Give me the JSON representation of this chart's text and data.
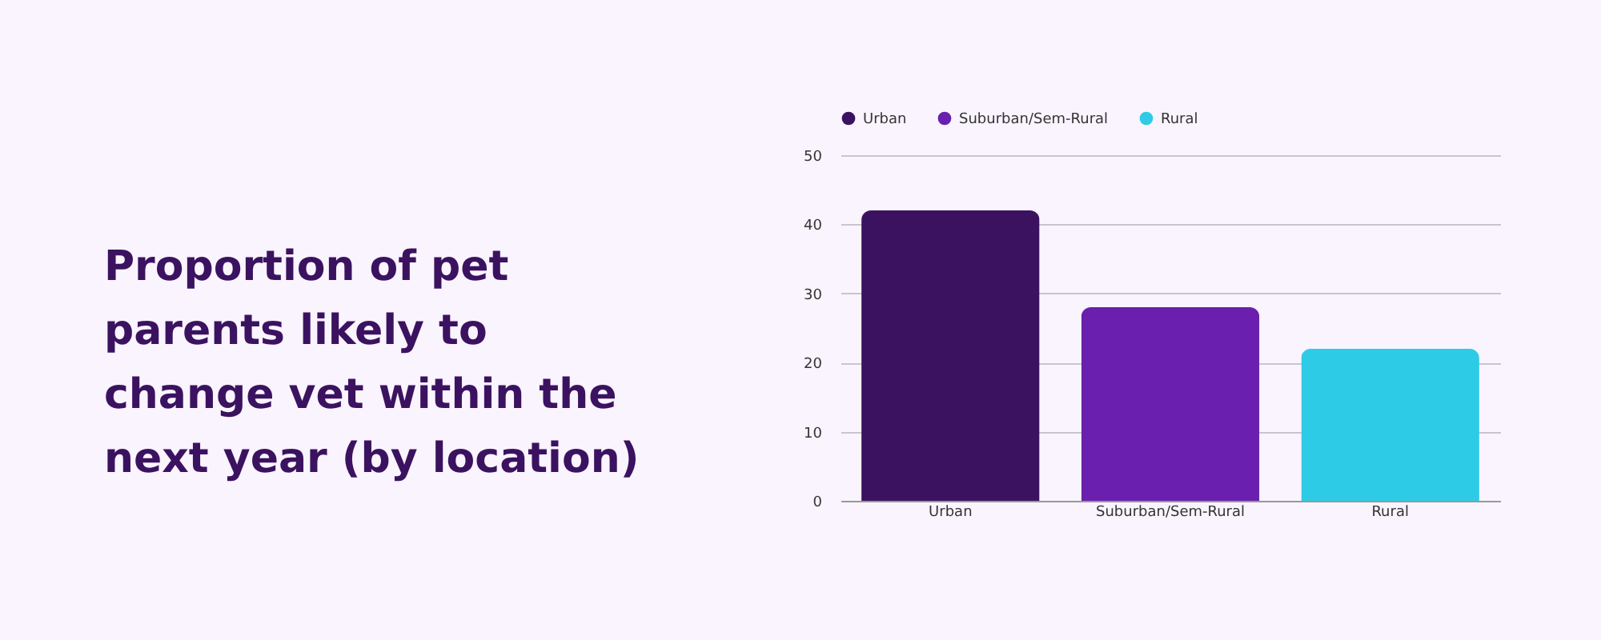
{
  "chart_data": {
    "type": "bar",
    "title": "Proportion of pet parents likely to change vet within the next year (by location)",
    "categories": [
      "Urban",
      "Suburban/Sem-Rural",
      "Rural"
    ],
    "series": [
      {
        "name": "Urban",
        "color": "#3b1260",
        "values": [
          42,
          null,
          null
        ]
      },
      {
        "name": "Suburban/Sem-Rural",
        "color": "#6a1fae",
        "values": [
          null,
          28,
          null
        ]
      },
      {
        "name": "Rural",
        "color": "#2ecbe6",
        "values": [
          null,
          null,
          22
        ]
      }
    ],
    "ylim": [
      0,
      50
    ],
    "yticks": [
      0,
      10,
      20,
      30,
      40,
      50
    ],
    "grid": "y",
    "legend": "top"
  }
}
